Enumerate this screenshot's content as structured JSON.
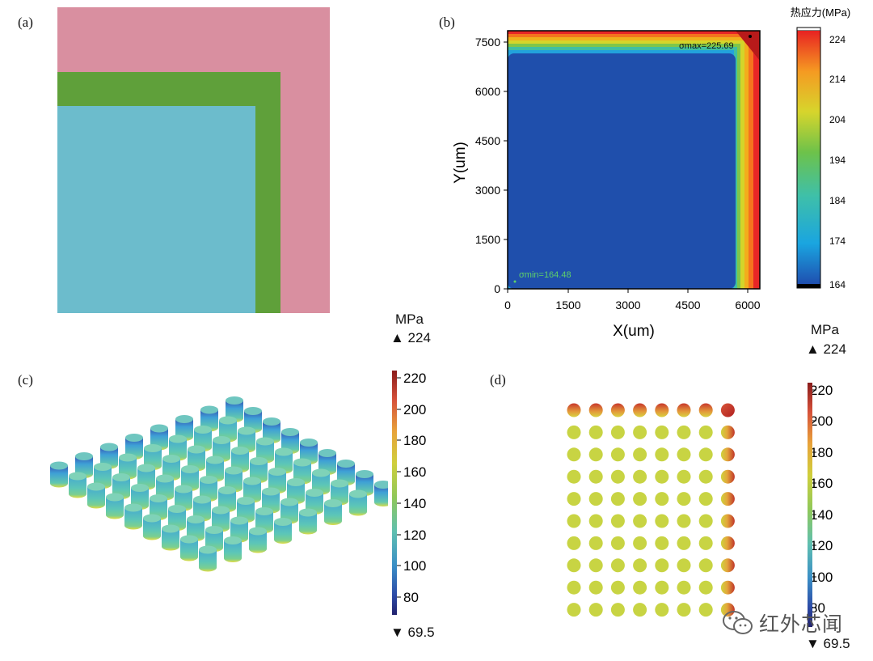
{
  "panels": {
    "a": {
      "label": "(a)",
      "colors": {
        "outer": "#d98fa0",
        "middle": "#5fa03a",
        "inner": "#6cbccc"
      }
    },
    "b": {
      "label": "(b)",
      "xlabel": "X(um)",
      "ylabel": "Y(um)",
      "xticks": [
        "0",
        "1500",
        "3000",
        "4500",
        "6000"
      ],
      "yticks": [
        "0",
        "1500",
        "3000",
        "4500",
        "6000",
        "7500"
      ],
      "max_label": "σmax=225.69",
      "min_label": "σmin=164.48",
      "colorbar_title": "热应力(MPa)",
      "colorbar_ticks": [
        "224",
        "214",
        "204",
        "194",
        "184",
        "174",
        "164"
      ]
    },
    "c": {
      "label": "(c)",
      "unit": "MPa",
      "max": "▲ 224",
      "min": "▼ 69.5",
      "ticks": [
        "220",
        "200",
        "180",
        "160",
        "140",
        "120",
        "100",
        "80"
      ]
    },
    "d": {
      "label": "(d)",
      "unit": "MPa",
      "max": "▲ 224",
      "min": "▼ 69.5",
      "ticks": [
        "220",
        "200",
        "180",
        "160",
        "140",
        "120",
        "100",
        "80"
      ]
    }
  },
  "watermark": {
    "text": "红外芯闻",
    "icon": "wechat-icon"
  }
}
